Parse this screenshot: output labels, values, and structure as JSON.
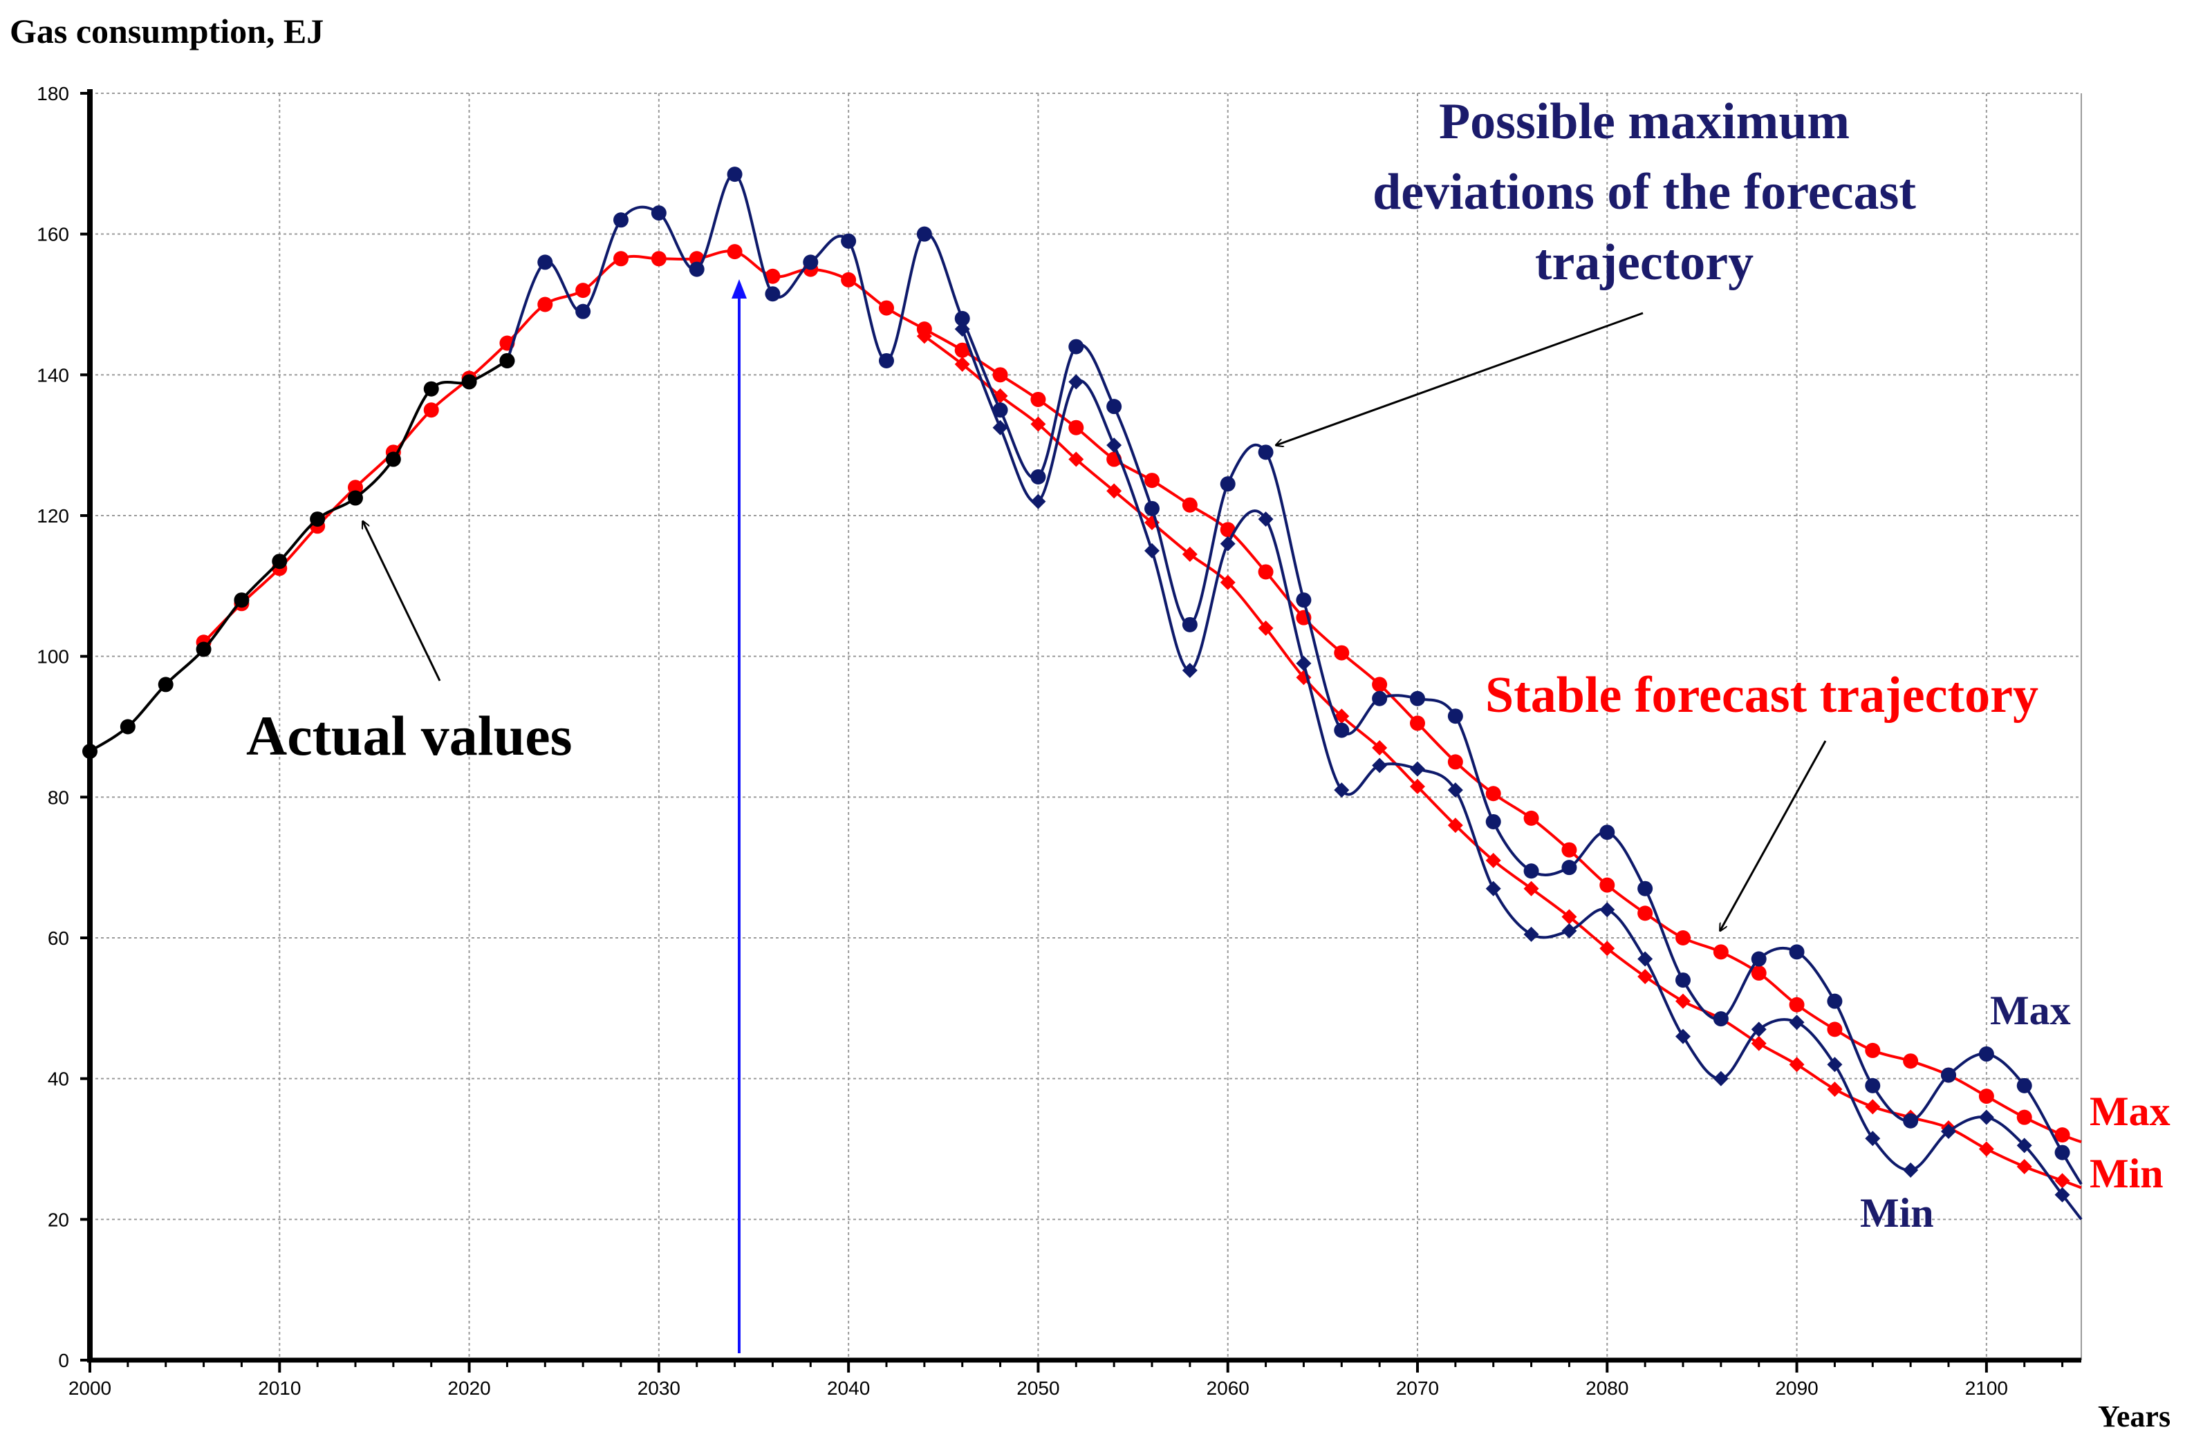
{
  "chart_data": {
    "type": "line",
    "title": "",
    "ylabel": "Gas consumption, EJ",
    "xlabel": "Years",
    "xlim": [
      2000,
      2105
    ],
    "ylim": [
      0,
      180
    ],
    "xticks": [
      2000,
      2010,
      2020,
      2030,
      2040,
      2050,
      2060,
      2070,
      2080,
      2090,
      2100
    ],
    "yticks": [
      0,
      20,
      40,
      60,
      80,
      100,
      120,
      140,
      160,
      180
    ],
    "grid": true,
    "forecast_start_year": 2034,
    "series": [
      {
        "name": "Actual values",
        "color": "#000000",
        "marker": "circle",
        "x": [
          2000,
          2002,
          2004,
          2006,
          2008,
          2010,
          2012,
          2014,
          2016,
          2018,
          2020,
          2022
        ],
        "values": [
          86.5,
          90,
          96,
          101,
          108,
          113.5,
          119.5,
          122.5,
          128,
          138,
          139,
          142
        ]
      },
      {
        "name": "Stable forecast Max",
        "color": "#ff0000",
        "marker": "circle",
        "x": [
          2006,
          2008,
          2010,
          2012,
          2014,
          2016,
          2018,
          2020,
          2022,
          2024,
          2026,
          2028,
          2030,
          2032,
          2034,
          2036,
          2038,
          2040,
          2042,
          2044,
          2046,
          2048,
          2050,
          2052,
          2054,
          2056,
          2058,
          2060,
          2062,
          2064,
          2066,
          2068,
          2070,
          2072,
          2074,
          2076,
          2078,
          2080,
          2082,
          2084,
          2086,
          2088,
          2090,
          2092,
          2094,
          2096,
          2098,
          2100,
          2102,
          2104,
          2105
        ],
        "values": [
          102,
          107.5,
          112.5,
          118.5,
          124,
          129,
          135,
          139.5,
          144.5,
          150,
          152,
          156.5,
          156.5,
          156.5,
          157.5,
          154,
          155,
          153.5,
          149.5,
          146.5,
          143.5,
          140,
          136.5,
          132.5,
          128,
          125,
          121.5,
          118,
          112,
          105.5,
          100.5,
          96,
          90.5,
          85,
          80.5,
          77,
          72.5,
          67.5,
          63.5,
          60,
          58,
          55,
          50.5,
          47,
          44,
          42.5,
          40.5,
          37.5,
          34.5,
          32,
          31
        ]
      },
      {
        "name": "Stable forecast Min",
        "color": "#ff0000",
        "marker": "diamond",
        "x": [
          2044,
          2046,
          2048,
          2050,
          2052,
          2054,
          2056,
          2058,
          2060,
          2062,
          2064,
          2066,
          2068,
          2070,
          2072,
          2074,
          2076,
          2078,
          2080,
          2082,
          2084,
          2086,
          2088,
          2090,
          2092,
          2094,
          2096,
          2098,
          2100,
          2102,
          2104,
          2105
        ],
        "values": [
          145.5,
          141.5,
          137,
          133,
          128,
          123.5,
          119,
          114.5,
          110.5,
          104,
          97,
          91.5,
          87,
          81.5,
          76,
          71,
          67,
          63,
          58.5,
          54.5,
          51,
          48.5,
          45,
          42,
          38.5,
          36,
          34.5,
          33,
          30,
          27.5,
          25.5,
          24.5
        ]
      },
      {
        "name": "Possible deviations Max",
        "color": "#0e1a6b",
        "marker": "circle",
        "x": [
          2022,
          2024,
          2026,
          2028,
          2030,
          2032,
          2034,
          2036,
          2038,
          2040,
          2042,
          2044,
          2046,
          2048,
          2050,
          2052,
          2054,
          2056,
          2058,
          2060,
          2062,
          2064,
          2066,
          2068,
          2070,
          2072,
          2074,
          2076,
          2078,
          2080,
          2082,
          2084,
          2086,
          2088,
          2090,
          2092,
          2094,
          2096,
          2098,
          2100,
          2102,
          2104,
          2105
        ],
        "values": [
          142,
          156,
          149,
          162,
          163,
          155,
          168.5,
          151.5,
          156,
          159,
          142,
          160,
          148,
          135,
          125.5,
          144,
          135.5,
          121,
          104.5,
          124.5,
          129,
          108,
          89.5,
          94,
          94,
          91.5,
          76.5,
          69.5,
          70,
          75,
          67,
          54,
          48.5,
          57,
          58,
          51,
          39,
          34,
          40.5,
          43.5,
          39,
          29.5,
          25
        ]
      },
      {
        "name": "Possible deviations Min",
        "color": "#0e1a6b",
        "marker": "diamond",
        "x": [
          2046,
          2048,
          2050,
          2052,
          2054,
          2056,
          2058,
          2060,
          2062,
          2064,
          2066,
          2068,
          2070,
          2072,
          2074,
          2076,
          2078,
          2080,
          2082,
          2084,
          2086,
          2088,
          2090,
          2092,
          2094,
          2096,
          2098,
          2100,
          2102,
          2104,
          2105
        ],
        "values": [
          146.5,
          132.5,
          122,
          139,
          130,
          115,
          98,
          116,
          119.5,
          99,
          81,
          84.5,
          84,
          81,
          67,
          60.5,
          61,
          64,
          57,
          46,
          40,
          47,
          48,
          42,
          31.5,
          27,
          32.5,
          34.5,
          30.5,
          23.5,
          20
        ]
      }
    ],
    "annotations": {
      "actual": "Actual values",
      "possible_line1": "Possible maximum",
      "possible_line2": "deviations of the forecast",
      "possible_line3": "trajectory",
      "stable": "Stable forecast trajectory",
      "navy_max": "Max",
      "navy_min": "Min",
      "red_max": "Max",
      "red_min": "Min"
    }
  }
}
